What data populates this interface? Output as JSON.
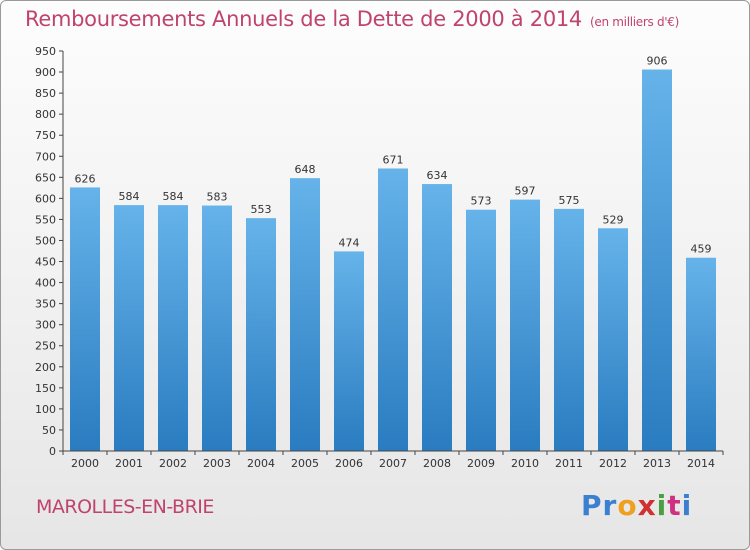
{
  "header": {
    "title": "Remboursements Annuels de la Dette de 2000 à 2014",
    "unit": "(en milliers d'€)"
  },
  "footer": {
    "town": "MAROLLES-EN-BRIE",
    "logo_letters": [
      "P",
      "r",
      "o",
      "x",
      "i",
      "t",
      "i"
    ],
    "logo_colors": [
      "#3a7fd0",
      "#3a7fd0",
      "#f0a020",
      "#d03030",
      "#4aa040",
      "#d03080",
      "#3a7fd0"
    ]
  },
  "colors": {
    "bar_top": "#66b3ea",
    "bar_bottom": "#2a7cc0",
    "title": "#c0436e"
  },
  "chart_data": {
    "type": "bar",
    "categories": [
      "2000",
      "2001",
      "2002",
      "2003",
      "2004",
      "2005",
      "2006",
      "2007",
      "2008",
      "2009",
      "2010",
      "2011",
      "2012",
      "2013",
      "2014"
    ],
    "values": [
      626,
      584,
      584,
      583,
      553,
      648,
      474,
      671,
      634,
      573,
      597,
      575,
      529,
      906,
      459
    ],
    "ylim": [
      0,
      950
    ],
    "ytick_step": 50,
    "grid": false,
    "legend": "none"
  }
}
